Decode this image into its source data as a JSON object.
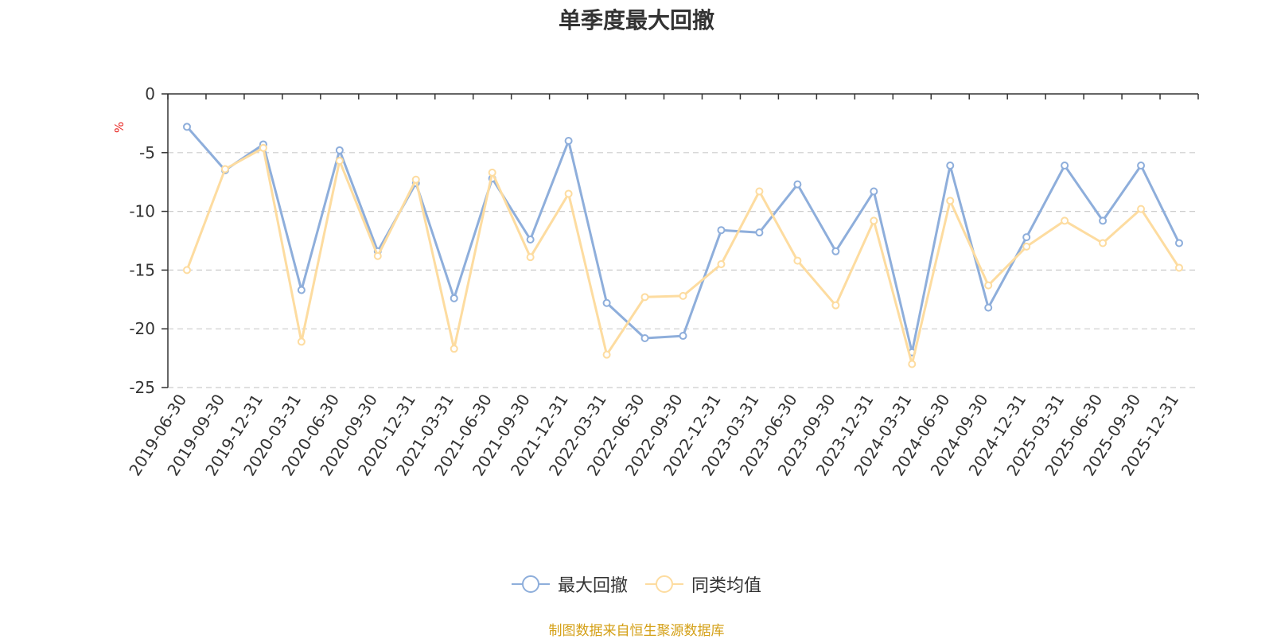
{
  "chart_data": {
    "type": "line",
    "title": "单季度最大回撤",
    "ylabel": "%",
    "ylim": [
      -25,
      0
    ],
    "yticks": [
      "0",
      "-5",
      "-10",
      "-15",
      "-20",
      "-25"
    ],
    "ytick_values": [
      0,
      -5,
      -10,
      -15,
      -20,
      -25
    ],
    "grid": true,
    "legend_position": "bottom",
    "categories": [
      "2019-06-30",
      "2019-09-30",
      "2019-12-31",
      "2020-03-31",
      "2020-06-30",
      "2020-09-30",
      "2020-12-31",
      "2021-03-31",
      "2021-06-30",
      "2021-09-30",
      "2021-12-31",
      "2022-03-31",
      "2022-06-30",
      "2022-09-30",
      "2022-12-31",
      "2023-03-31",
      "2023-06-30",
      "2023-09-30",
      "2023-12-31",
      "2024-03-31",
      "2024-06-30",
      "2024-09-30",
      "2024-12-31",
      "2025-03-31",
      "2025-06-30",
      "2025-09-30",
      "2025-12-31"
    ],
    "series": [
      {
        "name": "最大回撤",
        "color": "#8eaedb",
        "values": [
          -2.8,
          -6.5,
          -4.3,
          -16.7,
          -4.8,
          -13.4,
          -7.6,
          -17.4,
          -7.2,
          -12.4,
          -4.0,
          -17.8,
          -20.8,
          -20.6,
          -11.6,
          -11.8,
          -7.7,
          -13.4,
          -8.3,
          -22.0,
          -6.1,
          -18.2,
          -12.2,
          -6.1,
          -10.8,
          -6.1,
          -12.7
        ]
      },
      {
        "name": "同类均值",
        "color": "#fddca0",
        "values": [
          -15.0,
          -6.4,
          -4.6,
          -21.1,
          -5.7,
          -13.8,
          -7.3,
          -21.7,
          -6.7,
          -13.9,
          -8.5,
          -22.2,
          -17.3,
          -17.2,
          -14.5,
          -8.3,
          -14.2,
          -18.0,
          -10.8,
          -23.0,
          -9.1,
          -16.3,
          -13.0,
          -10.8,
          -12.7,
          -9.8,
          -14.8
        ]
      }
    ]
  },
  "source_text": "制图数据来自恒生聚源数据库"
}
